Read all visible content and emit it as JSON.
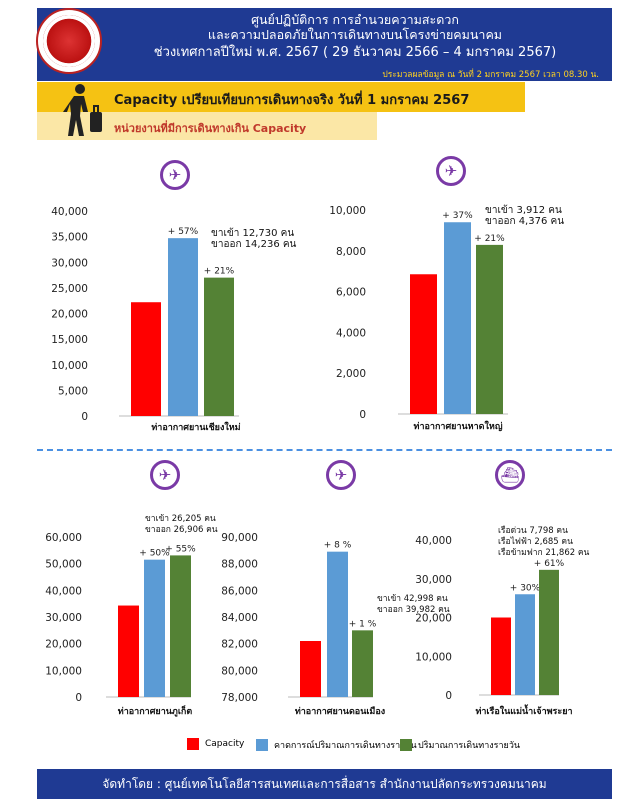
{
  "header": {
    "line1": "ศูนย์ปฏิบัติการ การอำนวยความสะดวก",
    "line2": "และความปลอดภัยในการเดินทางบนโครงข่ายคมนาคม",
    "line3": "ช่วงเทศกาลปีใหม่ พ.ศ. 2567  ( 29 ธันวาคม 2566 – 4 มกราคม 2567)",
    "updated": "ประมวลผลข้อมูล ณ วันที่ 2 มกราคม 2567 เวลา 08.30 น."
  },
  "banner_title": "Capacity เปรียบเทียบการเดินทางจริง   วันที่ 1 มกราคม 2567",
  "subtitle": "หน่วยงานที่มีการเดินทางเกิน Capacity",
  "colors": {
    "capacity": "#ff0000",
    "forecast": "#5b9bd5",
    "actual": "#548235"
  },
  "legend": {
    "capacity": "Capacity",
    "forecast": "คาดการณ์ปริมาณการเดินทางรายวัน",
    "actual": "ปริมาณการเดินทางรายวัน"
  },
  "footer": "จัดทำโดย : ศูนย์เทคโนโลยีสารสนเทศและการสื่อสาร สำนักงานปลัดกระทรวงคมนาคม",
  "chart_data": [
    {
      "type": "bar",
      "category": "ท่าอากาศยานเชียงใหม่",
      "icon": "airplane-icon",
      "series": [
        {
          "name": "Capacity",
          "value": 22200
        },
        {
          "name": "คาดการณ์ปริมาณการเดินทางรายวัน",
          "value": 34700,
          "label": "+ 57%"
        },
        {
          "name": "ปริมาณการเดินทางรายวัน",
          "value": 27000,
          "label": "+ 21%"
        }
      ],
      "ylim": [
        0,
        40000
      ],
      "ticks": [
        "0",
        "5,000",
        "10,000",
        "15,000",
        "20,000",
        "25,000",
        "30,000",
        "35,000",
        "40,000"
      ],
      "notes": [
        "ขาเข้า  12,730 คน",
        "ขาออก 14,236 คน"
      ]
    },
    {
      "type": "bar",
      "category": "ท่าอากาศยานหาดใหญ่",
      "icon": "airplane-icon",
      "series": [
        {
          "name": "Capacity",
          "value": 6850
        },
        {
          "name": "คาดการณ์ปริมาณการเดินทางรายวัน",
          "value": 9400,
          "label": "+ 37%"
        },
        {
          "name": "ปริมาณการเดินทางรายวัน",
          "value": 8290,
          "label": "+ 21%"
        }
      ],
      "ylim": [
        0,
        10000
      ],
      "ticks": [
        "0",
        "2,000",
        "4,000",
        "6,000",
        "8,000",
        "10,000"
      ],
      "notes": [
        "ขาเข้า    3,912 คน",
        "ขาออก  4,376 คน"
      ]
    },
    {
      "type": "bar",
      "category": "ท่าอากาศยานภูเก็ต",
      "icon": "airplane-icon",
      "series": [
        {
          "name": "Capacity",
          "value": 34300
        },
        {
          "name": "คาดการณ์ปริมาณการเดินทางรายวัน",
          "value": 51500,
          "label": "+ 50%"
        },
        {
          "name": "ปริมาณการเดินทางรายวัน",
          "value": 53100,
          "label": "+ 55%"
        }
      ],
      "ylim": [
        0,
        60000
      ],
      "ticks": [
        "0",
        "10,000",
        "20,000",
        "30,000",
        "40,000",
        "50,000",
        "60,000"
      ],
      "notes": [
        "ขาเข้า    26,205 คน",
        "ขาออก  26,906 คน"
      ]
    },
    {
      "type": "bar",
      "category": "ท่าอากาศยานดอนเมือง",
      "icon": "airplane-icon",
      "series": [
        {
          "name": "Capacity",
          "value": 82200
        },
        {
          "name": "คาดการณ์ปริมาณการเดินทางรายวัน",
          "value": 88900,
          "label": "+ 8 %"
        },
        {
          "name": "ปริมาณการเดินทางรายวัน",
          "value": 83000,
          "label": "+ 1 %"
        }
      ],
      "ylim": [
        78000,
        90000
      ],
      "ticks": [
        "78,000",
        "80,000",
        "82,000",
        "84,000",
        "86,000",
        "88,000",
        "90,000"
      ],
      "notes": [
        "ขาเข้า    42,998 คน",
        "ขาออก  39,982 คน"
      ]
    },
    {
      "type": "bar",
      "category": "ท่าเรือในแม่น้ำเจ้าพระยา",
      "icon": "boat-icon",
      "series": [
        {
          "name": "Capacity",
          "value": 20000
        },
        {
          "name": "คาดการณ์ปริมาณการเดินทางรายวัน",
          "value": 26000,
          "label": "+ 30%"
        },
        {
          "name": "ปริมาณการเดินทางรายวัน",
          "value": 32300,
          "label": "+ 61%"
        }
      ],
      "ylim": [
        0,
        40000
      ],
      "ticks": [
        "0",
        "10,000",
        "20,000",
        "30,000",
        "40,000"
      ],
      "notes": [
        "เรือด่วน          7,798 คน",
        "เรือไฟฟ้า         2,685 คน",
        "เรือข้ามฟาก  21,862 คน"
      ]
    }
  ]
}
